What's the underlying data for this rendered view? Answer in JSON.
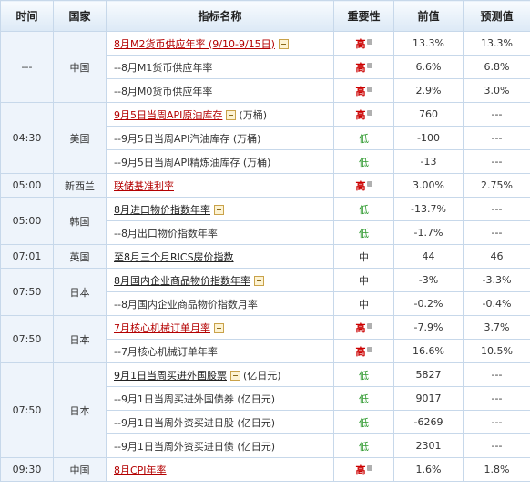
{
  "headers": {
    "time": "时间",
    "country": "国家",
    "name": "指标名称",
    "importance": "重要性",
    "previous": "前值",
    "forecast": "预测值"
  },
  "groups": [
    {
      "time": "---",
      "country": "中国",
      "rows": [
        {
          "name": "8月M2货币供应年率 (9/10-9/15日)",
          "kind": "link",
          "expand": true,
          "unit": "",
          "importance": "高",
          "level": "high",
          "previous": "13.3%",
          "forecast": "13.3%"
        },
        {
          "name": "--8月M1货币供应年率",
          "kind": "sub",
          "expand": false,
          "unit": "",
          "importance": "高",
          "level": "high",
          "previous": "6.6%",
          "forecast": "6.8%"
        },
        {
          "name": "--8月M0货币供应年率",
          "kind": "sub",
          "expand": false,
          "unit": "",
          "importance": "高",
          "level": "high",
          "previous": "2.9%",
          "forecast": "3.0%"
        }
      ]
    },
    {
      "time": "04:30",
      "country": "美国",
      "rows": [
        {
          "name": "9月5日当周API原油库存",
          "kind": "link",
          "expand": true,
          "unit": "(万桶)",
          "importance": "高",
          "level": "high",
          "previous": "760",
          "forecast": "---"
        },
        {
          "name": "--9月5日当周API汽油库存 (万桶)",
          "kind": "sub",
          "expand": false,
          "unit": "",
          "importance": "低",
          "level": "low",
          "previous": "-100",
          "forecast": "---"
        },
        {
          "name": "--9月5日当周API精炼油库存 (万桶)",
          "kind": "sub",
          "expand": false,
          "unit": "",
          "importance": "低",
          "level": "low",
          "previous": "-13",
          "forecast": "---"
        }
      ]
    },
    {
      "time": "05:00",
      "country": "新西兰",
      "rows": [
        {
          "name": "联储基准利率",
          "kind": "link",
          "expand": false,
          "unit": "",
          "importance": "高",
          "level": "high",
          "previous": "3.00%",
          "forecast": "2.75%"
        }
      ]
    },
    {
      "time": "05:00",
      "country": "韩国",
      "rows": [
        {
          "name": "8月进口物价指数年率",
          "kind": "plain",
          "expand": true,
          "unit": "",
          "importance": "低",
          "level": "low",
          "previous": "-13.7%",
          "forecast": "---"
        },
        {
          "name": "--8月出口物价指数年率",
          "kind": "sub",
          "expand": false,
          "unit": "",
          "importance": "低",
          "level": "low",
          "previous": "-1.7%",
          "forecast": "---"
        }
      ]
    },
    {
      "time": "07:01",
      "country": "英国",
      "rows": [
        {
          "name": "至8月三个月RICS房价指数",
          "kind": "plain",
          "expand": false,
          "unit": "",
          "importance": "中",
          "level": "mid",
          "previous": "44",
          "forecast": "46"
        }
      ]
    },
    {
      "time": "07:50",
      "country": "日本",
      "rows": [
        {
          "name": "8月国内企业商品物价指数年率",
          "kind": "plain",
          "expand": true,
          "unit": "",
          "importance": "中",
          "level": "mid",
          "previous": "-3%",
          "forecast": "-3.3%"
        },
        {
          "name": "--8月国内企业商品物价指数月率",
          "kind": "sub",
          "expand": false,
          "unit": "",
          "importance": "中",
          "level": "mid",
          "previous": "-0.2%",
          "forecast": "-0.4%"
        }
      ]
    },
    {
      "time": "07:50",
      "country": "日本",
      "rows": [
        {
          "name": "7月核心机械订单月率",
          "kind": "link",
          "expand": true,
          "unit": "",
          "importance": "高",
          "level": "high",
          "previous": "-7.9%",
          "forecast": "3.7%"
        },
        {
          "name": "--7月核心机械订单年率",
          "kind": "sub",
          "expand": false,
          "unit": "",
          "importance": "高",
          "level": "high",
          "previous": "16.6%",
          "forecast": "10.5%"
        }
      ]
    },
    {
      "time": "07:50",
      "country": "日本",
      "rows": [
        {
          "name": "9月1日当周买进外国股票",
          "kind": "plain",
          "expand": true,
          "unit": "(亿日元)",
          "importance": "低",
          "level": "low",
          "previous": "5827",
          "forecast": "---"
        },
        {
          "name": "--9月1日当周买进外国债券 (亿日元)",
          "kind": "sub",
          "expand": false,
          "unit": "",
          "importance": "低",
          "level": "low",
          "previous": "9017",
          "forecast": "---"
        },
        {
          "name": "--9月1日当周外资买进日股 (亿日元)",
          "kind": "sub",
          "expand": false,
          "unit": "",
          "importance": "低",
          "level": "low",
          "previous": "-6269",
          "forecast": "---"
        },
        {
          "name": "--9月1日当周外资买进日债 (亿日元)",
          "kind": "sub",
          "expand": false,
          "unit": "",
          "importance": "低",
          "level": "low",
          "previous": "2301",
          "forecast": "---"
        }
      ]
    },
    {
      "time": "09:30",
      "country": "中国",
      "rows": [
        {
          "name": "8月CPI年率",
          "kind": "link",
          "expand": false,
          "unit": "",
          "importance": "高",
          "level": "high",
          "previous": "1.6%",
          "forecast": "1.8%"
        }
      ]
    }
  ]
}
